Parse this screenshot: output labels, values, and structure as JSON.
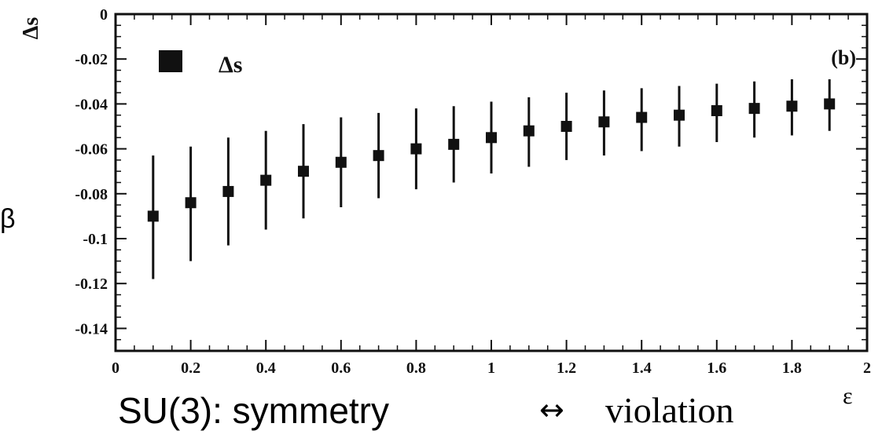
{
  "chart_data": {
    "type": "scatter",
    "panel_label": "(b)",
    "ylabel": "Δs",
    "xlim": [
      0,
      2
    ],
    "ylim": [
      -0.15,
      0
    ],
    "x_ticks": [
      "0",
      "0.2",
      "0.4",
      "0.6",
      "0.8",
      "1",
      "1.2",
      "1.4",
      "1.6",
      "1.8",
      "2"
    ],
    "y_ticks": [
      "0",
      "-0.02",
      "-0.04",
      "-0.06",
      "-0.08",
      "-0.1",
      "-0.12",
      "-0.14"
    ],
    "legend": {
      "label": "Δs",
      "position": "top-left"
    },
    "series": [
      {
        "name": "Δs",
        "marker": "filled-square",
        "points": [
          {
            "x": 0.1,
            "y": -0.09,
            "ylow": -0.118,
            "yhigh": -0.063
          },
          {
            "x": 0.2,
            "y": -0.084,
            "ylow": -0.11,
            "yhigh": -0.059
          },
          {
            "x": 0.3,
            "y": -0.079,
            "ylow": -0.103,
            "yhigh": -0.055
          },
          {
            "x": 0.4,
            "y": -0.074,
            "ylow": -0.096,
            "yhigh": -0.052
          },
          {
            "x": 0.5,
            "y": -0.07,
            "ylow": -0.091,
            "yhigh": -0.049
          },
          {
            "x": 0.6,
            "y": -0.066,
            "ylow": -0.086,
            "yhigh": -0.046
          },
          {
            "x": 0.7,
            "y": -0.063,
            "ylow": -0.082,
            "yhigh": -0.044
          },
          {
            "x": 0.8,
            "y": -0.06,
            "ylow": -0.078,
            "yhigh": -0.042
          },
          {
            "x": 0.9,
            "y": -0.058,
            "ylow": -0.075,
            "yhigh": -0.041
          },
          {
            "x": 1.0,
            "y": -0.055,
            "ylow": -0.071,
            "yhigh": -0.039
          },
          {
            "x": 1.1,
            "y": -0.052,
            "ylow": -0.068,
            "yhigh": -0.037
          },
          {
            "x": 1.2,
            "y": -0.05,
            "ylow": -0.065,
            "yhigh": -0.035
          },
          {
            "x": 1.3,
            "y": -0.048,
            "ylow": -0.063,
            "yhigh": -0.034
          },
          {
            "x": 1.4,
            "y": -0.046,
            "ylow": -0.061,
            "yhigh": -0.033
          },
          {
            "x": 1.5,
            "y": -0.045,
            "ylow": -0.059,
            "yhigh": -0.032
          },
          {
            "x": 1.6,
            "y": -0.043,
            "ylow": -0.057,
            "yhigh": -0.031
          },
          {
            "x": 1.7,
            "y": -0.042,
            "ylow": -0.055,
            "yhigh": -0.03
          },
          {
            "x": 1.8,
            "y": -0.041,
            "ylow": -0.054,
            "yhigh": -0.029
          },
          {
            "x": 1.9,
            "y": -0.04,
            "ylow": -0.052,
            "yhigh": -0.029
          }
        ]
      }
    ]
  },
  "caption": {
    "left": "SU(3):  symmetry",
    "arrow": "↔",
    "right": "violation",
    "epsilon": "ε"
  },
  "edge_glyph": "β",
  "colors": {
    "ink": "#111111",
    "background": "#ffffff"
  }
}
